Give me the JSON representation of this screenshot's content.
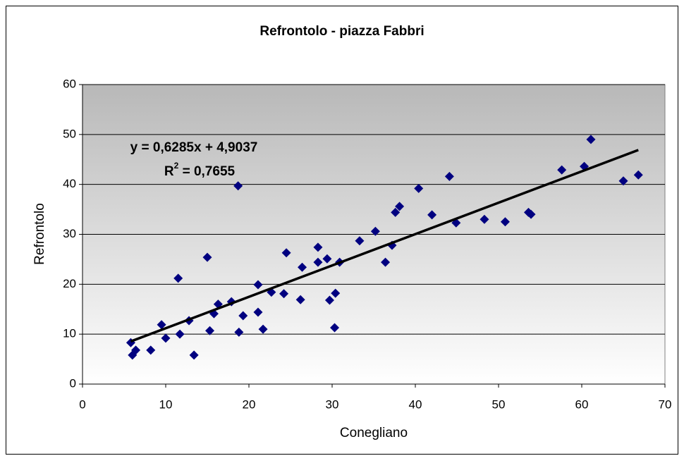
{
  "chart_data": {
    "type": "scatter",
    "title": "Refrontolo - piazza Fabbri",
    "x_label": "Conegliano",
    "y_label": "Refrontolo",
    "series": [
      {
        "color": "#000080",
        "x": [
          5.8,
          6.0,
          6.4,
          8.2,
          9.5,
          10.0,
          11.5,
          11.7,
          12.8,
          13.4,
          15.0,
          15.3,
          15.8,
          16.3,
          17.9,
          18.7,
          18.8,
          19.3,
          21.1,
          21.1,
          21.7,
          22.7,
          24.2,
          24.5,
          26.2,
          26.4,
          28.3,
          28.3,
          29.4,
          29.7,
          30.4,
          30.3,
          30.9,
          33.3,
          35.2,
          36.4,
          37.2,
          37.6,
          38.1,
          40.4,
          42.0,
          44.1,
          44.9,
          48.3,
          50.8,
          53.6,
          53.9,
          57.6,
          60.3,
          61.1,
          65.0,
          66.8
        ],
        "values": [
          8.3,
          5.8,
          6.8,
          6.8,
          11.9,
          9.2,
          21.2,
          10.0,
          12.7,
          5.8,
          25.4,
          10.7,
          14.1,
          16.0,
          16.5,
          39.7,
          10.4,
          13.7,
          19.9,
          14.4,
          11.0,
          18.4,
          18.1,
          26.3,
          16.9,
          23.4,
          27.4,
          24.4,
          25.1,
          16.8,
          18.2,
          11.3,
          24.4,
          28.7,
          30.6,
          24.4,
          27.8,
          34.4,
          35.6,
          39.2,
          33.9,
          41.6,
          32.3,
          33.0,
          32.5,
          34.4,
          34.0,
          42.9,
          43.6,
          49.0,
          40.7,
          41.9
        ]
      }
    ],
    "trendline": {
      "color": "#000000",
      "equation": "y = 0,6285x + 4,9037",
      "slope": 0.6285,
      "intercept": 4.9037,
      "r_squared": 0.7655,
      "r_squared_label": {
        "base": "R",
        "sup": "2",
        "rest": " = 0,7655"
      }
    },
    "xlim": [
      0,
      70
    ],
    "xticks": [
      0,
      10,
      20,
      30,
      40,
      50,
      60,
      70
    ],
    "ylim": [
      0,
      60
    ],
    "yticks": [
      0,
      10,
      20,
      30,
      40,
      50,
      60
    ],
    "grid": true
  }
}
